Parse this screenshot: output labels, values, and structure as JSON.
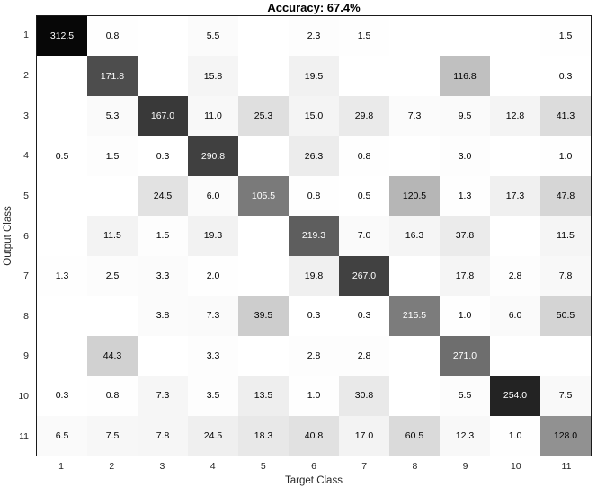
{
  "chart_data": {
    "type": "heatmap",
    "title": "Accuracy: 67.4%",
    "xlabel": "Target Class",
    "ylabel": "Output Class",
    "x_ticks": [
      "1",
      "2",
      "3",
      "4",
      "5",
      "6",
      "7",
      "8",
      "9",
      "10",
      "11"
    ],
    "y_ticks": [
      "1",
      "2",
      "3",
      "4",
      "5",
      "6",
      "7",
      "8",
      "9",
      "10",
      "11"
    ],
    "cells": [
      [
        312.5,
        0.8,
        null,
        5.5,
        null,
        2.3,
        1.5,
        null,
        null,
        null,
        1.5
      ],
      [
        null,
        171.8,
        null,
        15.8,
        null,
        19.5,
        null,
        null,
        116.8,
        null,
        0.3
      ],
      [
        null,
        5.3,
        167.0,
        11.0,
        25.3,
        15.0,
        29.8,
        7.3,
        9.5,
        12.8,
        41.3
      ],
      [
        0.5,
        1.5,
        0.3,
        290.8,
        null,
        26.3,
        0.8,
        null,
        3.0,
        null,
        1.0
      ],
      [
        null,
        null,
        24.5,
        6.0,
        105.5,
        0.8,
        0.5,
        120.5,
        1.3,
        17.3,
        47.8
      ],
      [
        null,
        11.5,
        1.5,
        19.3,
        null,
        219.3,
        7.0,
        16.3,
        37.8,
        null,
        11.5
      ],
      [
        1.3,
        2.5,
        3.3,
        2.0,
        null,
        19.8,
        267.0,
        null,
        17.8,
        2.8,
        7.8
      ],
      [
        null,
        null,
        3.8,
        7.3,
        39.5,
        0.3,
        0.3,
        215.5,
        1.0,
        6.0,
        50.5
      ],
      [
        null,
        44.3,
        null,
        3.3,
        null,
        2.8,
        2.8,
        null,
        271.0,
        null,
        null
      ],
      [
        0.3,
        0.8,
        7.3,
        3.5,
        13.5,
        1.0,
        30.8,
        null,
        5.5,
        254.0,
        7.5
      ],
      [
        6.5,
        7.5,
        7.8,
        24.5,
        18.3,
        40.8,
        17.0,
        60.5,
        12.3,
        1.0,
        128.0
      ]
    ],
    "value_decimals": 1,
    "colormap": "white-to-black-grayscale",
    "color_normalization": "column_sum",
    "grid": false,
    "legend": false,
    "colors": {
      "min_color": "#ffffff",
      "max_color": "#000000",
      "title_text": "#000000",
      "axis_text": "#262626",
      "border": "#1a1a1a",
      "value_text_dark": "#000000",
      "value_text_light": "#ffffff"
    }
  }
}
